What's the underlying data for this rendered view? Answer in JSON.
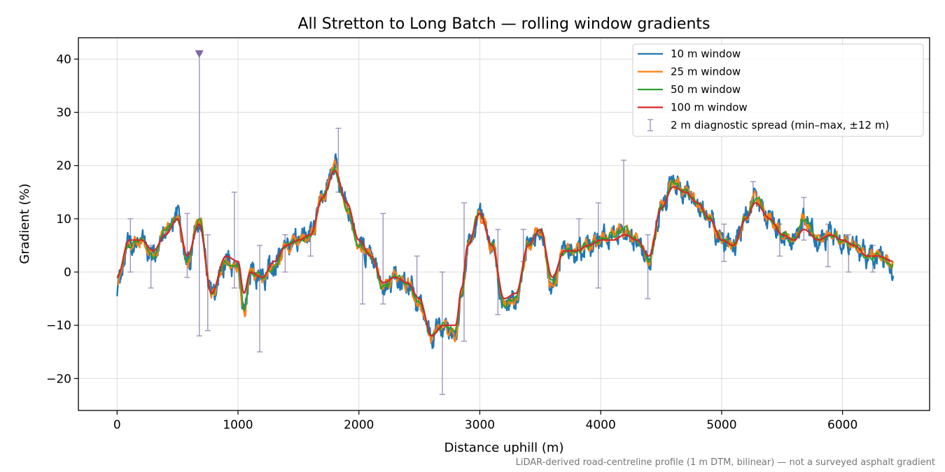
{
  "chart_data": {
    "type": "line",
    "title": "All Stretton to Long Batch — rolling window gradients",
    "xlabel": "Distance uphill (m)",
    "ylabel": "Gradient (%)",
    "xlim": [
      -320,
      6720
    ],
    "ylim": [
      -26,
      44
    ],
    "xticks": [
      0,
      1000,
      2000,
      3000,
      4000,
      5000,
      6000
    ],
    "xtick_labels": [
      "0",
      "1000",
      "2000",
      "3000",
      "4000",
      "5000",
      "6000"
    ],
    "yticks": [
      -20,
      -10,
      0,
      10,
      20,
      30,
      40
    ],
    "ytick_labels": [
      "−20",
      "−10",
      "0",
      "10",
      "20",
      "30",
      "40"
    ],
    "grid": true,
    "legend_position": "top-right",
    "footnote": "LiDAR-derived road-centreline profile (1 m DTM, bilinear) — not a surveyed asphalt gradient",
    "x": [
      0,
      100,
      200,
      300,
      400,
      500,
      580,
      680,
      780,
      900,
      1000,
      1050,
      1100,
      1200,
      1300,
      1400,
      1500,
      1600,
      1700,
      1800,
      1900,
      2000,
      2100,
      2200,
      2300,
      2400,
      2500,
      2600,
      2700,
      2800,
      2850,
      2900,
      3000,
      3100,
      3200,
      3300,
      3400,
      3500,
      3600,
      3700,
      3800,
      3900,
      4000,
      4100,
      4200,
      4300,
      4400,
      4500,
      4600,
      4700,
      4800,
      4900,
      5000,
      5100,
      5200,
      5280,
      5400,
      5500,
      5600,
      5680,
      5800,
      5900,
      6000,
      6100,
      6200,
      6300,
      6420
    ],
    "series": [
      {
        "name": "10 m window",
        "color": "#1f77b4",
        "width": 2.4,
        "jitter": 2.4,
        "values": [
          -3,
          5,
          6,
          3,
          8,
          10,
          2,
          10,
          -4,
          2,
          1,
          -8,
          0,
          -1,
          1,
          5,
          6,
          7,
          14,
          20,
          12,
          5,
          3,
          -3,
          -1,
          -2,
          -6,
          -12,
          -10,
          -12,
          -4,
          5,
          11,
          5,
          -6,
          -5,
          5,
          8,
          -3,
          4,
          4,
          5,
          6,
          7,
          8,
          6,
          2,
          12,
          17,
          15,
          13,
          10,
          6,
          5,
          10,
          14,
          10,
          7,
          6,
          10,
          6,
          7,
          6,
          5,
          3,
          3,
          0
        ]
      },
      {
        "name": "25 m window",
        "color": "#ff7f0e",
        "width": 2.2,
        "jitter": 1.4,
        "values": [
          -2,
          5,
          6,
          3,
          8,
          10,
          2,
          10,
          -4,
          2,
          1,
          -8,
          0,
          -1,
          1,
          5,
          6,
          7,
          14,
          20,
          12,
          5,
          3,
          -3,
          -1,
          -2,
          -6,
          -12,
          -10,
          -12,
          -4,
          5,
          11,
          5,
          -6,
          -5,
          5,
          8,
          -3,
          4,
          4,
          5,
          6,
          7,
          8,
          6,
          2,
          12,
          17,
          15,
          13,
          10,
          6,
          5,
          10,
          14,
          10,
          7,
          6,
          10,
          6,
          7,
          6,
          5,
          3,
          3,
          1
        ]
      },
      {
        "name": "50 m window",
        "color": "#2ca02c",
        "width": 2.0,
        "jitter": 0.7,
        "values": [
          -1,
          5,
          6,
          3,
          8,
          10,
          2,
          10,
          -4,
          2,
          1,
          -7,
          0,
          -1,
          1,
          5,
          6,
          7,
          14,
          19,
          12,
          5,
          3,
          -3,
          -1,
          -2,
          -6,
          -12,
          -10,
          -11,
          -4,
          5,
          11,
          5,
          -6,
          -5,
          5,
          8,
          -2,
          4,
          4,
          5,
          6,
          7,
          8,
          6,
          2,
          12,
          17,
          15,
          13,
          10,
          6,
          5,
          10,
          14,
          10,
          7,
          6,
          10,
          6,
          7,
          6,
          5,
          3,
          3,
          1
        ]
      },
      {
        "name": "100 m window",
        "color": "#d62728",
        "width": 2.2,
        "jitter": 0,
        "values": [
          -1,
          6,
          6,
          4,
          7,
          10,
          3,
          9,
          -4,
          3,
          2,
          -4,
          0,
          -1,
          2,
          5,
          6,
          7,
          14,
          19,
          13,
          6,
          3,
          -2,
          -1,
          -2,
          -5,
          -12,
          -10,
          -10,
          -3,
          5,
          11,
          5,
          -5,
          -4,
          5,
          8,
          -1,
          4,
          4,
          5,
          6,
          6,
          7,
          6,
          3,
          12,
          16,
          15,
          13,
          10,
          6,
          5,
          10,
          13,
          10,
          7,
          6,
          8,
          6,
          7,
          6,
          5,
          3,
          3,
          2
        ]
      }
    ],
    "diagnostic": {
      "name": "2 m diagnostic spread (min–max, ±12 m)",
      "color": "#9d96bb",
      "bars": [
        {
          "x": 110,
          "low": 0,
          "high": 10
        },
        {
          "x": 280,
          "low": -3,
          "high": 5
        },
        {
          "x": 580,
          "low": -1,
          "high": 11
        },
        {
          "x": 680,
          "low": -12,
          "high": 41
        },
        {
          "x": 750,
          "low": -11,
          "high": 7
        },
        {
          "x": 970,
          "low": -3,
          "high": 15
        },
        {
          "x": 1180,
          "low": -15,
          "high": 5
        },
        {
          "x": 1390,
          "low": 0,
          "high": 7
        },
        {
          "x": 1600,
          "low": 3,
          "high": 7
        },
        {
          "x": 1830,
          "low": 15,
          "high": 27
        },
        {
          "x": 2030,
          "low": -6,
          "high": 5
        },
        {
          "x": 2200,
          "low": -6,
          "high": 11
        },
        {
          "x": 2480,
          "low": -7,
          "high": 3
        },
        {
          "x": 2690,
          "low": -23,
          "high": 0
        },
        {
          "x": 2870,
          "low": -13,
          "high": 13
        },
        {
          "x": 3150,
          "low": -8,
          "high": 8
        },
        {
          "x": 3360,
          "low": 2,
          "high": 8
        },
        {
          "x": 3820,
          "low": 4,
          "high": 10
        },
        {
          "x": 3980,
          "low": -3,
          "high": 13
        },
        {
          "x": 4190,
          "low": 7,
          "high": 21
        },
        {
          "x": 4390,
          "low": -5,
          "high": 7
        },
        {
          "x": 5020,
          "low": 2,
          "high": 9
        },
        {
          "x": 5260,
          "low": 13,
          "high": 17
        },
        {
          "x": 5480,
          "low": 3,
          "high": 9
        },
        {
          "x": 5680,
          "low": 6,
          "high": 14
        },
        {
          "x": 5880,
          "low": 1,
          "high": 9
        },
        {
          "x": 6050,
          "low": 0,
          "high": 7
        },
        {
          "x": 6250,
          "low": 0,
          "high": 5
        }
      ]
    },
    "clipped_marker": {
      "x": 680,
      "y": 41,
      "color": "#8068a8"
    }
  }
}
